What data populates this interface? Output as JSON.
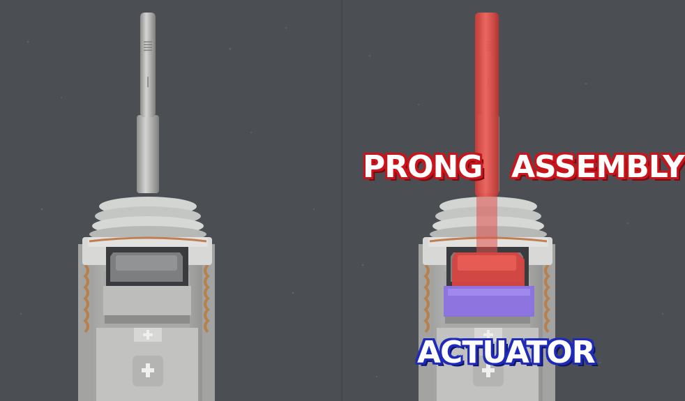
{
  "labels": {
    "prong": "PRONG",
    "assembly": "ASSEMBLY",
    "actuator": "ACTUATOR"
  },
  "colors": {
    "background": "#4b4e52",
    "metal": "#b9b9b7",
    "prong_highlight": "#e2514b",
    "actuator_highlight": "#8a70e0",
    "label_red_outline": "#c9141c",
    "label_blue_outline": "#1f2bb8"
  }
}
